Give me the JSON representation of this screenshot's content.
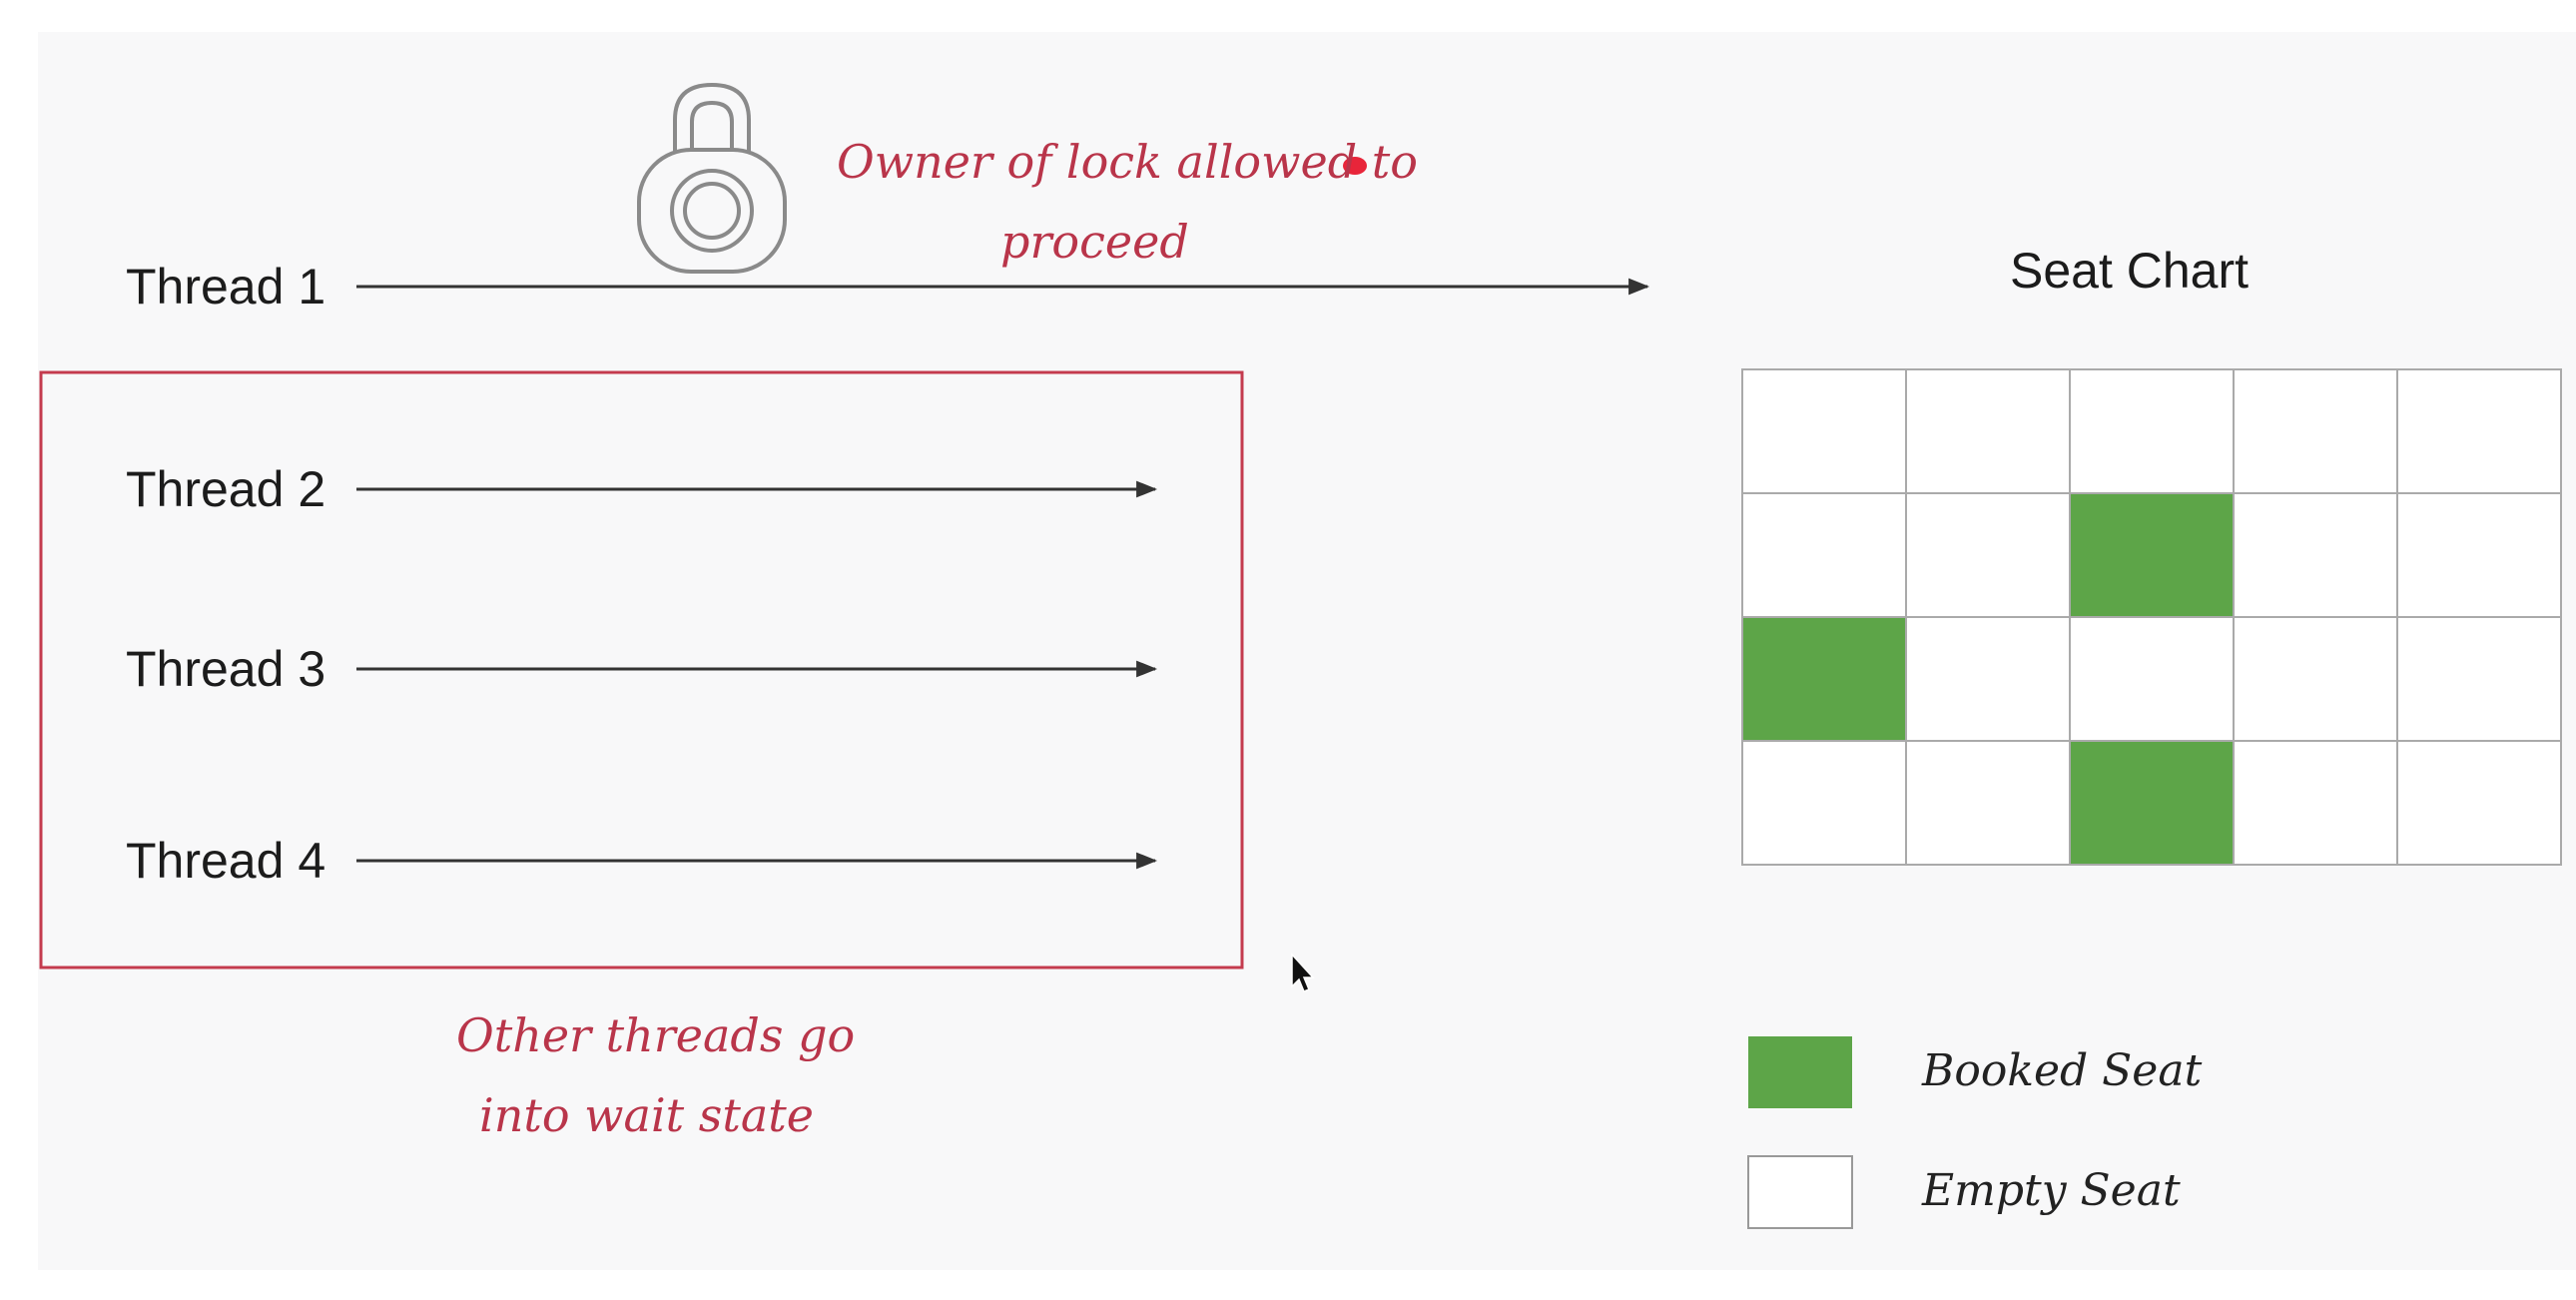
{
  "threads": [
    {
      "label": "Thread 1"
    },
    {
      "label": "Thread 2"
    },
    {
      "label": "Thread 3"
    },
    {
      "label": "Thread 4"
    }
  ],
  "notes": {
    "lock_owner": [
      "Owner of lock allowed to",
      "proceed"
    ],
    "waiting": [
      "Other threads go",
      "into wait state"
    ]
  },
  "seat_chart": {
    "title": "Seat Chart",
    "rows": 4,
    "cols": 5,
    "booked": [
      [
        1,
        2
      ],
      [
        2,
        0
      ],
      [
        3,
        2
      ]
    ]
  },
  "legend": {
    "booked": "Booked Seat",
    "empty": "Empty Seat"
  },
  "colors": {
    "booked": "#5da548",
    "wait_box": "#c43b4e",
    "note": "#b9354a",
    "grid": "#aaaaaa"
  },
  "icons": {
    "lock": "padlock-icon",
    "cursor": "mouse-cursor-icon"
  }
}
